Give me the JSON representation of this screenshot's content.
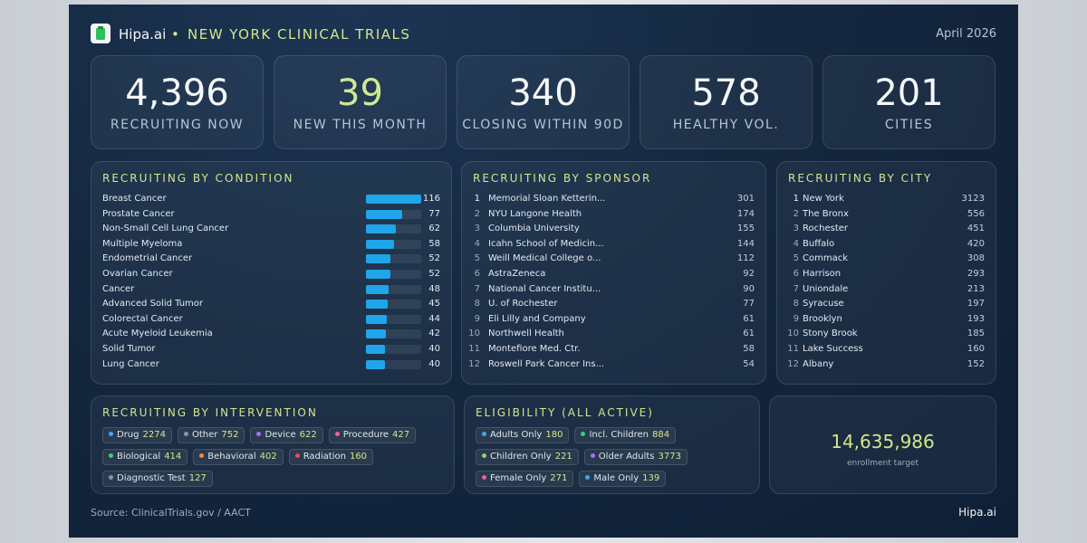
{
  "header": {
    "brand": "Hipa.ai",
    "separator": "•",
    "title": "NEW YORK CLINICAL TRIALS",
    "date": "April 2026"
  },
  "kpis": [
    {
      "value": "4,396",
      "label": "RECRUITING NOW",
      "color": "#f4f7fb"
    },
    {
      "value": "39",
      "label": "NEW THIS MONTH",
      "color": "#cfe894"
    },
    {
      "value": "340",
      "label": "CLOSING WITHIN 90D",
      "color": "#f4f7fb"
    },
    {
      "value": "578",
      "label": "HEALTHY VOL.",
      "color": "#f4f7fb"
    },
    {
      "value": "201",
      "label": "CITIES",
      "color": "#f4f7fb"
    }
  ],
  "chart_data": {
    "type": "bar",
    "orientation": "horizontal",
    "title": "RECRUITING BY CONDITION",
    "color": "#1fa6ea",
    "categories": [
      "Breast Cancer",
      "Prostate Cancer",
      "Non-Small Cell Lung Cancer",
      "Multiple Myeloma",
      "Endometrial Cancer",
      "Ovarian Cancer",
      "Cancer",
      "Advanced Solid Tumor",
      "Colorectal Cancer",
      "Acute Myeloid Leukemia",
      "Solid Tumor",
      "Lung Cancer"
    ],
    "values": [
      116,
      77,
      62,
      58,
      52,
      52,
      48,
      45,
      44,
      42,
      40,
      40
    ]
  },
  "sponsors": {
    "title": "RECRUITING BY SPONSOR",
    "rows": [
      {
        "rank": 1,
        "name": "Memorial Sloan Ketterin...",
        "count": 301
      },
      {
        "rank": 2,
        "name": "NYU Langone Health",
        "count": 174
      },
      {
        "rank": 3,
        "name": "Columbia University",
        "count": 155
      },
      {
        "rank": 4,
        "name": "Icahn School of Medicin...",
        "count": 144
      },
      {
        "rank": 5,
        "name": "Weill Medical College o...",
        "count": 112
      },
      {
        "rank": 6,
        "name": "AstraZeneca",
        "count": 92
      },
      {
        "rank": 7,
        "name": "National Cancer Institu...",
        "count": 90
      },
      {
        "rank": 8,
        "name": "U. of Rochester",
        "count": 77
      },
      {
        "rank": 9,
        "name": "Eli Lilly and Company",
        "count": 61
      },
      {
        "rank": 10,
        "name": "Northwell Health",
        "count": 61
      },
      {
        "rank": 11,
        "name": "Montefiore Med. Ctr.",
        "count": 58
      },
      {
        "rank": 12,
        "name": "Roswell Park Cancer Ins...",
        "count": 54
      }
    ]
  },
  "cities": {
    "title": "RECRUITING BY CITY",
    "rows": [
      {
        "rank": 1,
        "name": "New York",
        "count": 3123
      },
      {
        "rank": 2,
        "name": "The Bronx",
        "count": 556
      },
      {
        "rank": 3,
        "name": "Rochester",
        "count": 451
      },
      {
        "rank": 4,
        "name": "Buffalo",
        "count": 420
      },
      {
        "rank": 5,
        "name": "Commack",
        "count": 308
      },
      {
        "rank": 6,
        "name": "Harrison",
        "count": 293
      },
      {
        "rank": 7,
        "name": "Uniondale",
        "count": 213
      },
      {
        "rank": 8,
        "name": "Syracuse",
        "count": 197
      },
      {
        "rank": 9,
        "name": "Brooklyn",
        "count": 193
      },
      {
        "rank": 10,
        "name": "Stony Brook",
        "count": 185
      },
      {
        "rank": 11,
        "name": "Lake Success",
        "count": 160
      },
      {
        "rank": 12,
        "name": "Albany",
        "count": 152
      }
    ]
  },
  "intervention": {
    "title": "RECRUITING BY INTERVENTION",
    "tags": [
      {
        "name": "Drug",
        "count": 2274,
        "color": "#3ea8f2"
      },
      {
        "name": "Other",
        "count": 752,
        "color": "#8a96a6"
      },
      {
        "name": "Device",
        "count": 622,
        "color": "#a274f0"
      },
      {
        "name": "Procedure",
        "count": 427,
        "color": "#ef5f9c"
      },
      {
        "name": "Biological",
        "count": 414,
        "color": "#3ccf7a"
      },
      {
        "name": "Behavioral",
        "count": 402,
        "color": "#f08a3c"
      },
      {
        "name": "Radiation",
        "count": 160,
        "color": "#ef4b4b"
      },
      {
        "name": "Diagnostic Test",
        "count": 127,
        "color": "#8a96a6"
      }
    ]
  },
  "eligibility": {
    "title": "ELIGIBILITY (ALL ACTIVE)",
    "tags": [
      {
        "name": "Adults Only",
        "count": 180,
        "color": "#3ea8f2"
      },
      {
        "name": "Incl. Children",
        "count": 884,
        "color": "#3ccf7a"
      },
      {
        "name": "Children Only",
        "count": 221,
        "color": "#8fd36a"
      },
      {
        "name": "Older Adults",
        "count": 3773,
        "color": "#a274f0"
      },
      {
        "name": "Female Only",
        "count": 271,
        "color": "#ef5f9c"
      },
      {
        "name": "Male Only",
        "count": 139,
        "color": "#3ea8f2"
      }
    ]
  },
  "enrollment": {
    "value": "14,635,986",
    "label": "enrollment target"
  },
  "footer": {
    "source": "Source: ClinicalTrials.gov / AACT",
    "brand": "Hipa.ai"
  }
}
